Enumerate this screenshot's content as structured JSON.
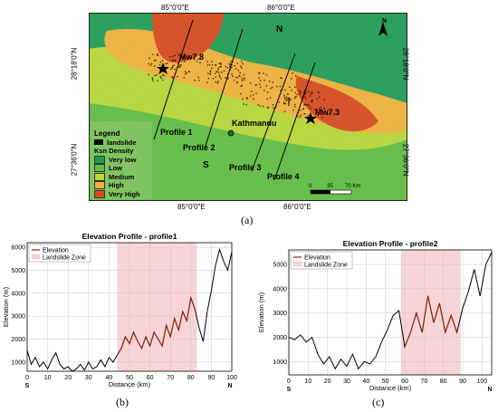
{
  "map": {
    "top_axis": [
      "85°0'0\"E",
      "86°0'0\"E"
    ],
    "bottom_axis": [
      "85°0'0\"E",
      "86°0'0\"E"
    ],
    "left_axis": [
      "28°18'0\"N",
      "27°36'0\"N"
    ],
    "right_axis": [
      "28°18'0\"N",
      "27°36'0\"N"
    ],
    "north_label": "N",
    "south_label": "S",
    "north_arrow_label": "N",
    "city_label": "Kathmandu",
    "quake_labels": [
      "Mw7.8",
      "Mw7.3"
    ],
    "profiles": [
      "Profile 1",
      "Profile 2",
      "Profile 3",
      "Profile 4"
    ],
    "legend": {
      "title": "Legend",
      "landslide": "landslide",
      "density_title": "Ksn Density",
      "classes": [
        {
          "label": "Very low",
          "color": "#1f9d55"
        },
        {
          "label": "Low",
          "color": "#5fbf43"
        },
        {
          "label": "Medium",
          "color": "#b8d936"
        },
        {
          "label": "High",
          "color": "#f2b23a"
        },
        {
          "label": "Very High",
          "color": "#d84a1e"
        }
      ]
    },
    "scale": {
      "ticks": [
        "0",
        "35",
        "70 Km"
      ]
    }
  },
  "captions": {
    "a": "(a)",
    "b": "(b)",
    "c": "(c)"
  },
  "chart_data": [
    {
      "type": "line",
      "title": "Elevation Profile - profile1",
      "xlabel": "Distance (km)",
      "ylabel": "Elevation (m)",
      "xlim": [
        0,
        100
      ],
      "ylim": [
        600,
        6200
      ],
      "xticks": [
        0,
        10,
        20,
        30,
        40,
        50,
        60,
        70,
        80,
        90,
        100
      ],
      "yticks": [
        1000,
        2000,
        3000,
        4000,
        5000,
        6000
      ],
      "start_label": "S",
      "end_label": "N",
      "grid": true,
      "legend": {
        "placement": "top-left",
        "entries": [
          "Elevation",
          "Landslide Zone"
        ]
      },
      "landslide_zone": [
        44,
        83
      ],
      "colors": {
        "elevation": "#000000",
        "landslide_line": "#8b2500",
        "zone": "#f8d4d8"
      },
      "series": [
        {
          "name": "Elevation",
          "x": [
            0,
            2,
            4,
            6,
            8,
            10,
            12,
            14,
            16,
            18,
            20,
            22,
            24,
            26,
            28,
            30,
            32,
            34,
            36,
            38,
            40,
            42,
            44,
            46,
            48,
            50,
            52,
            54,
            56,
            58,
            60,
            62,
            64,
            66,
            68,
            70,
            72,
            74,
            76,
            78,
            80,
            82,
            84,
            86,
            88,
            90,
            92,
            94,
            96,
            98,
            100
          ],
          "y": [
            1500,
            900,
            1200,
            800,
            1000,
            700,
            1100,
            1400,
            900,
            700,
            800,
            600,
            700,
            900,
            650,
            1000,
            700,
            800,
            1100,
            800,
            1200,
            1000,
            1300,
            1600,
            2100,
            1800,
            2300,
            1900,
            1600,
            2100,
            1700,
            2300,
            2000,
            1700,
            2600,
            2100,
            2900,
            2400,
            3200,
            2800,
            3800,
            3300,
            2500,
            1900,
            3200,
            4100,
            5200,
            5900,
            5400,
            5000,
            5800
          ]
        }
      ]
    },
    {
      "type": "line",
      "title": "Elevation Profile - profile2",
      "xlabel": "Distance (km)",
      "ylabel": "Elevation (m)",
      "xlim": [
        0,
        105
      ],
      "ylim": [
        450,
        5600
      ],
      "xticks": [
        0,
        10,
        20,
        30,
        40,
        50,
        60,
        70,
        80,
        90,
        100
      ],
      "yticks": [
        1000,
        2000,
        3000,
        4000,
        5000
      ],
      "start_label": "S",
      "end_label": "N",
      "grid": true,
      "legend": {
        "placement": "top-left",
        "entries": [
          "Elevation",
          "Landslide Zone"
        ]
      },
      "landslide_zone": [
        58,
        89
      ],
      "colors": {
        "elevation": "#000000",
        "landslide_line": "#8b2500",
        "zone": "#f8d4d8"
      },
      "series": [
        {
          "name": "Elevation",
          "x": [
            0,
            3,
            6,
            9,
            12,
            15,
            18,
            21,
            24,
            27,
            30,
            33,
            36,
            39,
            42,
            45,
            48,
            51,
            54,
            57,
            60,
            63,
            66,
            69,
            72,
            75,
            78,
            81,
            84,
            87,
            90,
            93,
            96,
            99,
            102,
            105
          ],
          "y": [
            2000,
            1900,
            2100,
            1800,
            2000,
            1300,
            900,
            1200,
            700,
            1100,
            800,
            1300,
            700,
            1000,
            900,
            1200,
            1800,
            2300,
            2900,
            3100,
            1600,
            2200,
            3000,
            2200,
            3700,
            2600,
            3400,
            2200,
            2900,
            2200,
            3200,
            3900,
            4800,
            3700,
            5000,
            5500
          ]
        }
      ]
    }
  ]
}
